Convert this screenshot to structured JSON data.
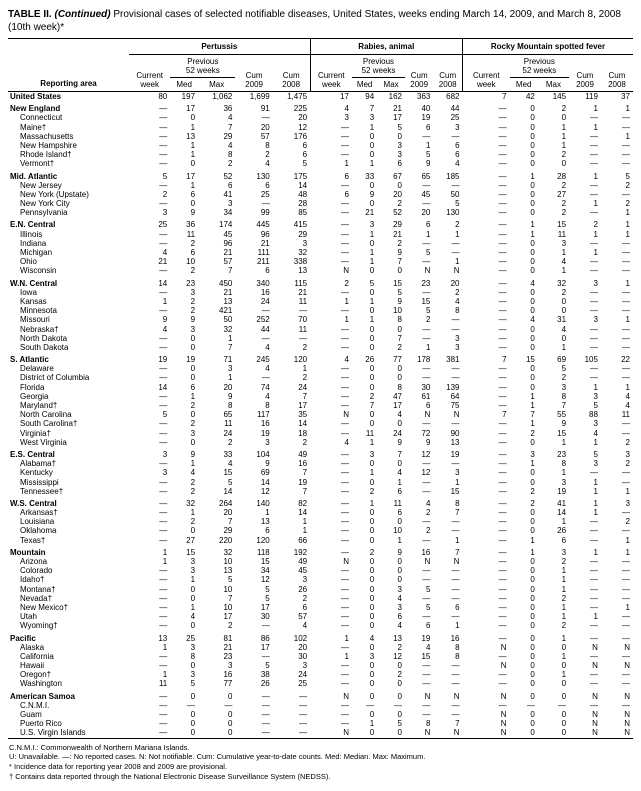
{
  "title_prefix": "TABLE II. ",
  "title_italic": "(Continued)",
  "title_rest": " Provisional cases of selected notifiable diseases, United States, weeks ending March 14, 2009, and March 8, 2008 (10th week)*",
  "diseases": [
    "Pertussis",
    "Rabies, animal",
    "Rocky Mountain spotted fever"
  ],
  "prev_label": "Previous\n52 weeks",
  "col_labels": [
    "Reporting area",
    "Current\nweek",
    "Med",
    "Max",
    "Cum\n2009",
    "Cum\n2008",
    "Current\nweek",
    "Med",
    "Max",
    "Cum\n2009",
    "Cum\n2008",
    "Current\nweek",
    "Med",
    "Max",
    "Cum\n2009",
    "Cum\n2008"
  ],
  "footnotes": [
    "C.N.M.I.: Commonwealth of Northern Mariana Islands.",
    "U: Unavailable.    —: No reported cases.    N: Not notifiable.    Cum: Cumulative year-to-date counts.    Med: Median.    Max: Maximum.",
    "* Incidence data for reporting year 2008 and 2009 are provisional.",
    "† Contains data reported through the National Electronic Disease Surveillance System (NEDSS)."
  ],
  "rows": [
    {
      "region": true,
      "area": "United States",
      "cells": [
        "80",
        "197",
        "1,062",
        "1,699",
        "1,475",
        "17",
        "94",
        "162",
        "363",
        "682",
        "7",
        "42",
        "145",
        "119",
        "37"
      ]
    },
    {
      "region": true,
      "area": "New England",
      "cells": [
        "—",
        "17",
        "36",
        "91",
        "225",
        "4",
        "7",
        "21",
        "40",
        "44",
        "—",
        "0",
        "2",
        "1",
        "1"
      ]
    },
    {
      "area": "Connecticut",
      "cells": [
        "—",
        "0",
        "4",
        "—",
        "20",
        "3",
        "3",
        "17",
        "19",
        "25",
        "—",
        "0",
        "0",
        "—",
        "—"
      ]
    },
    {
      "area": "Maine†",
      "cells": [
        "—",
        "1",
        "7",
        "20",
        "12",
        "—",
        "1",
        "5",
        "6",
        "3",
        "—",
        "0",
        "1",
        "1",
        "—"
      ]
    },
    {
      "area": "Massachusetts",
      "cells": [
        "—",
        "13",
        "29",
        "57",
        "176",
        "—",
        "0",
        "0",
        "—",
        "—",
        "—",
        "0",
        "1",
        "—",
        "1"
      ]
    },
    {
      "area": "New Hampshire",
      "cells": [
        "—",
        "1",
        "4",
        "8",
        "6",
        "—",
        "0",
        "3",
        "1",
        "6",
        "—",
        "0",
        "1",
        "—",
        "—"
      ]
    },
    {
      "area": "Rhode Island†",
      "cells": [
        "—",
        "1",
        "8",
        "2",
        "6",
        "—",
        "0",
        "3",
        "5",
        "6",
        "—",
        "0",
        "2",
        "—",
        "—"
      ]
    },
    {
      "area": "Vermont†",
      "cells": [
        "—",
        "0",
        "2",
        "4",
        "5",
        "1",
        "1",
        "6",
        "9",
        "4",
        "—",
        "0",
        "0",
        "—",
        "—"
      ]
    },
    {
      "region": true,
      "area": "Mid. Atlantic",
      "cells": [
        "5",
        "17",
        "52",
        "130",
        "175",
        "6",
        "33",
        "67",
        "65",
        "185",
        "—",
        "1",
        "28",
        "1",
        "5"
      ]
    },
    {
      "area": "New Jersey",
      "cells": [
        "—",
        "1",
        "6",
        "6",
        "14",
        "—",
        "0",
        "0",
        "—",
        "—",
        "—",
        "0",
        "2",
        "—",
        "2"
      ]
    },
    {
      "area": "New York (Upstate)",
      "cells": [
        "2",
        "6",
        "41",
        "25",
        "48",
        "6",
        "9",
        "20",
        "45",
        "50",
        "—",
        "0",
        "27",
        "—",
        "—"
      ]
    },
    {
      "area": "New York City",
      "cells": [
        "—",
        "0",
        "3",
        "—",
        "28",
        "—",
        "0",
        "2",
        "—",
        "5",
        "—",
        "0",
        "2",
        "1",
        "2"
      ]
    },
    {
      "area": "Pennsylvania",
      "cells": [
        "3",
        "9",
        "34",
        "99",
        "85",
        "—",
        "21",
        "52",
        "20",
        "130",
        "—",
        "0",
        "2",
        "—",
        "1"
      ]
    },
    {
      "region": true,
      "area": "E.N. Central",
      "cells": [
        "25",
        "36",
        "174",
        "445",
        "415",
        "—",
        "3",
        "29",
        "6",
        "2",
        "—",
        "1",
        "15",
        "2",
        "1"
      ]
    },
    {
      "area": "Illinois",
      "cells": [
        "—",
        "11",
        "45",
        "96",
        "29",
        "—",
        "1",
        "21",
        "1",
        "1",
        "—",
        "1",
        "11",
        "1",
        "1"
      ]
    },
    {
      "area": "Indiana",
      "cells": [
        "—",
        "2",
        "96",
        "21",
        "3",
        "—",
        "0",
        "2",
        "—",
        "—",
        "—",
        "0",
        "3",
        "—",
        "—"
      ]
    },
    {
      "area": "Michigan",
      "cells": [
        "4",
        "6",
        "21",
        "111",
        "32",
        "—",
        "1",
        "9",
        "5",
        "—",
        "—",
        "0",
        "1",
        "1",
        "—"
      ]
    },
    {
      "area": "Ohio",
      "cells": [
        "21",
        "10",
        "57",
        "211",
        "338",
        "—",
        "1",
        "7",
        "—",
        "1",
        "—",
        "0",
        "4",
        "—",
        "—"
      ]
    },
    {
      "area": "Wisconsin",
      "cells": [
        "—",
        "2",
        "7",
        "6",
        "13",
        "N",
        "0",
        "0",
        "N",
        "N",
        "—",
        "0",
        "1",
        "—",
        "—"
      ]
    },
    {
      "region": true,
      "area": "W.N. Central",
      "cells": [
        "14",
        "23",
        "450",
        "340",
        "115",
        "2",
        "5",
        "15",
        "23",
        "20",
        "—",
        "4",
        "32",
        "3",
        "1"
      ]
    },
    {
      "area": "Iowa",
      "cells": [
        "—",
        "3",
        "21",
        "16",
        "21",
        "—",
        "0",
        "5",
        "—",
        "2",
        "—",
        "0",
        "2",
        "—",
        "—"
      ]
    },
    {
      "area": "Kansas",
      "cells": [
        "1",
        "2",
        "13",
        "24",
        "11",
        "1",
        "1",
        "9",
        "15",
        "4",
        "—",
        "0",
        "0",
        "—",
        "—"
      ]
    },
    {
      "area": "Minnesota",
      "cells": [
        "—",
        "2",
        "421",
        "—",
        "—",
        "—",
        "0",
        "10",
        "5",
        "8",
        "—",
        "0",
        "0",
        "—",
        "—"
      ]
    },
    {
      "area": "Missouri",
      "cells": [
        "9",
        "9",
        "50",
        "252",
        "70",
        "1",
        "1",
        "8",
        "2",
        "—",
        "—",
        "4",
        "31",
        "3",
        "1"
      ]
    },
    {
      "area": "Nebraska†",
      "cells": [
        "4",
        "3",
        "32",
        "44",
        "11",
        "—",
        "0",
        "0",
        "—",
        "—",
        "—",
        "0",
        "4",
        "—",
        "—"
      ]
    },
    {
      "area": "North Dakota",
      "cells": [
        "—",
        "0",
        "1",
        "—",
        "—",
        "—",
        "0",
        "7",
        "—",
        "3",
        "—",
        "0",
        "0",
        "—",
        "—"
      ]
    },
    {
      "area": "South Dakota",
      "cells": [
        "—",
        "0",
        "7",
        "4",
        "2",
        "—",
        "0",
        "2",
        "1",
        "3",
        "—",
        "0",
        "1",
        "—",
        "—"
      ]
    },
    {
      "region": true,
      "area": "S. Atlantic",
      "cells": [
        "19",
        "19",
        "71",
        "245",
        "120",
        "4",
        "26",
        "77",
        "178",
        "381",
        "7",
        "15",
        "69",
        "105",
        "22"
      ]
    },
    {
      "area": "Delaware",
      "cells": [
        "—",
        "0",
        "3",
        "4",
        "1",
        "—",
        "0",
        "0",
        "—",
        "—",
        "—",
        "0",
        "5",
        "—",
        "—"
      ]
    },
    {
      "area": "District of Columbia",
      "cells": [
        "—",
        "0",
        "1",
        "—",
        "2",
        "—",
        "0",
        "0",
        "—",
        "—",
        "—",
        "0",
        "2",
        "—",
        "—"
      ]
    },
    {
      "area": "Florida",
      "cells": [
        "14",
        "6",
        "20",
        "74",
        "24",
        "—",
        "0",
        "8",
        "30",
        "139",
        "—",
        "0",
        "3",
        "1",
        "1"
      ]
    },
    {
      "area": "Georgia",
      "cells": [
        "—",
        "1",
        "9",
        "4",
        "7",
        "—",
        "2",
        "47",
        "61",
        "64",
        "—",
        "1",
        "8",
        "3",
        "4"
      ]
    },
    {
      "area": "Maryland†",
      "cells": [
        "—",
        "2",
        "8",
        "8",
        "17",
        "—",
        "7",
        "17",
        "6",
        "75",
        "—",
        "1",
        "7",
        "5",
        "4"
      ]
    },
    {
      "area": "North Carolina",
      "cells": [
        "5",
        "0",
        "65",
        "117",
        "35",
        "N",
        "0",
        "4",
        "N",
        "N",
        "7",
        "7",
        "55",
        "88",
        "11"
      ]
    },
    {
      "area": "South Carolina†",
      "cells": [
        "—",
        "2",
        "11",
        "16",
        "14",
        "—",
        "0",
        "0",
        "—",
        "—",
        "—",
        "1",
        "9",
        "3",
        "—"
      ]
    },
    {
      "area": "Virginia†",
      "cells": [
        "—",
        "3",
        "24",
        "19",
        "18",
        "—",
        "11",
        "24",
        "72",
        "90",
        "—",
        "2",
        "15",
        "4",
        "—"
      ]
    },
    {
      "area": "West Virginia",
      "cells": [
        "—",
        "0",
        "2",
        "3",
        "2",
        "4",
        "1",
        "9",
        "9",
        "13",
        "—",
        "0",
        "1",
        "1",
        "2"
      ]
    },
    {
      "region": true,
      "area": "E.S. Central",
      "cells": [
        "3",
        "9",
        "33",
        "104",
        "49",
        "—",
        "3",
        "7",
        "12",
        "19",
        "—",
        "3",
        "23",
        "5",
        "3"
      ]
    },
    {
      "area": "Alabama†",
      "cells": [
        "—",
        "1",
        "4",
        "9",
        "16",
        "—",
        "0",
        "0",
        "—",
        "—",
        "—",
        "1",
        "8",
        "3",
        "2"
      ]
    },
    {
      "area": "Kentucky",
      "cells": [
        "3",
        "4",
        "15",
        "69",
        "7",
        "—",
        "1",
        "4",
        "12",
        "3",
        "—",
        "0",
        "1",
        "—",
        "—"
      ]
    },
    {
      "area": "Mississippi",
      "cells": [
        "—",
        "2",
        "5",
        "14",
        "19",
        "—",
        "0",
        "1",
        "—",
        "1",
        "—",
        "0",
        "3",
        "1",
        "—"
      ]
    },
    {
      "area": "Tennessee†",
      "cells": [
        "—",
        "2",
        "14",
        "12",
        "7",
        "—",
        "2",
        "6",
        "—",
        "15",
        "—",
        "2",
        "19",
        "1",
        "1"
      ]
    },
    {
      "region": true,
      "area": "W.S. Central",
      "cells": [
        "—",
        "32",
        "264",
        "140",
        "82",
        "—",
        "1",
        "11",
        "4",
        "8",
        "—",
        "2",
        "41",
        "1",
        "3"
      ]
    },
    {
      "area": "Arkansas†",
      "cells": [
        "—",
        "1",
        "20",
        "1",
        "14",
        "—",
        "0",
        "6",
        "2",
        "7",
        "—",
        "0",
        "14",
        "1",
        "—"
      ]
    },
    {
      "area": "Louisiana",
      "cells": [
        "—",
        "2",
        "7",
        "13",
        "1",
        "—",
        "0",
        "0",
        "—",
        "—",
        "—",
        "0",
        "1",
        "—",
        "2"
      ]
    },
    {
      "area": "Oklahoma",
      "cells": [
        "—",
        "0",
        "29",
        "6",
        "1",
        "—",
        "0",
        "10",
        "2",
        "—",
        "—",
        "0",
        "26",
        "—",
        "—"
      ]
    },
    {
      "area": "Texas†",
      "cells": [
        "—",
        "27",
        "220",
        "120",
        "66",
        "—",
        "0",
        "1",
        "—",
        "1",
        "—",
        "1",
        "6",
        "—",
        "1"
      ]
    },
    {
      "region": true,
      "area": "Mountain",
      "cells": [
        "1",
        "15",
        "32",
        "118",
        "192",
        "—",
        "2",
        "9",
        "16",
        "7",
        "—",
        "1",
        "3",
        "1",
        "1"
      ]
    },
    {
      "area": "Arizona",
      "cells": [
        "1",
        "3",
        "10",
        "15",
        "49",
        "N",
        "0",
        "0",
        "N",
        "N",
        "—",
        "0",
        "2",
        "—",
        "—"
      ]
    },
    {
      "area": "Colorado",
      "cells": [
        "—",
        "3",
        "13",
        "34",
        "45",
        "—",
        "0",
        "0",
        "—",
        "—",
        "—",
        "0",
        "1",
        "—",
        "—"
      ]
    },
    {
      "area": "Idaho†",
      "cells": [
        "—",
        "1",
        "5",
        "12",
        "3",
        "—",
        "0",
        "0",
        "—",
        "—",
        "—",
        "0",
        "1",
        "—",
        "—"
      ]
    },
    {
      "area": "Montana†",
      "cells": [
        "—",
        "0",
        "10",
        "5",
        "26",
        "—",
        "0",
        "3",
        "5",
        "—",
        "—",
        "0",
        "1",
        "—",
        "—"
      ]
    },
    {
      "area": "Nevada†",
      "cells": [
        "—",
        "0",
        "7",
        "5",
        "2",
        "—",
        "0",
        "4",
        "—",
        "—",
        "—",
        "0",
        "2",
        "—",
        "—"
      ]
    },
    {
      "area": "New Mexico†",
      "cells": [
        "—",
        "1",
        "10",
        "17",
        "6",
        "—",
        "0",
        "3",
        "5",
        "6",
        "—",
        "0",
        "1",
        "—",
        "1"
      ]
    },
    {
      "area": "Utah",
      "cells": [
        "—",
        "4",
        "17",
        "30",
        "57",
        "—",
        "0",
        "6",
        "—",
        "—",
        "—",
        "0",
        "1",
        "1",
        "—"
      ]
    },
    {
      "area": "Wyoming†",
      "cells": [
        "—",
        "0",
        "2",
        "—",
        "4",
        "—",
        "0",
        "4",
        "6",
        "1",
        "—",
        "0",
        "2",
        "—",
        "—"
      ]
    },
    {
      "region": true,
      "area": "Pacific",
      "cells": [
        "13",
        "25",
        "81",
        "86",
        "102",
        "1",
        "4",
        "13",
        "19",
        "16",
        "—",
        "0",
        "1",
        "—",
        "—"
      ]
    },
    {
      "area": "Alaska",
      "cells": [
        "1",
        "3",
        "21",
        "17",
        "20",
        "—",
        "0",
        "2",
        "4",
        "8",
        "N",
        "0",
        "0",
        "N",
        "N"
      ]
    },
    {
      "area": "California",
      "cells": [
        "—",
        "8",
        "23",
        "—",
        "30",
        "1",
        "3",
        "12",
        "15",
        "8",
        "—",
        "0",
        "1",
        "—",
        "—"
      ]
    },
    {
      "area": "Hawaii",
      "cells": [
        "—",
        "0",
        "3",
        "5",
        "3",
        "—",
        "0",
        "0",
        "—",
        "—",
        "N",
        "0",
        "0",
        "N",
        "N"
      ]
    },
    {
      "area": "Oregon†",
      "cells": [
        "1",
        "3",
        "16",
        "38",
        "24",
        "—",
        "0",
        "2",
        "—",
        "—",
        "—",
        "0",
        "1",
        "—",
        "—"
      ]
    },
    {
      "area": "Washington",
      "cells": [
        "11",
        "5",
        "77",
        "26",
        "25",
        "—",
        "0",
        "0",
        "—",
        "—",
        "—",
        "0",
        "0",
        "—",
        "—"
      ]
    },
    {
      "region": true,
      "area": "American Samoa",
      "cells": [
        "—",
        "0",
        "0",
        "—",
        "—",
        "N",
        "0",
        "0",
        "N",
        "N",
        "N",
        "0",
        "0",
        "N",
        "N"
      ]
    },
    {
      "area": "C.N.M.I.",
      "cells": [
        "—",
        "—",
        "—",
        "—",
        "—",
        "—",
        "—",
        "—",
        "—",
        "—",
        "—",
        "—",
        "—",
        "—",
        "—"
      ]
    },
    {
      "area": "Guam",
      "cells": [
        "—",
        "0",
        "0",
        "—",
        "—",
        "—",
        "0",
        "0",
        "—",
        "—",
        "N",
        "0",
        "0",
        "N",
        "N"
      ]
    },
    {
      "area": "Puerto Rico",
      "cells": [
        "—",
        "0",
        "0",
        "—",
        "—",
        "—",
        "1",
        "5",
        "8",
        "7",
        "N",
        "0",
        "0",
        "N",
        "N"
      ]
    },
    {
      "area": "U.S. Virgin Islands",
      "cells": [
        "—",
        "0",
        "0",
        "—",
        "—",
        "N",
        "0",
        "0",
        "N",
        "N",
        "N",
        "0",
        "0",
        "N",
        "N"
      ]
    }
  ]
}
